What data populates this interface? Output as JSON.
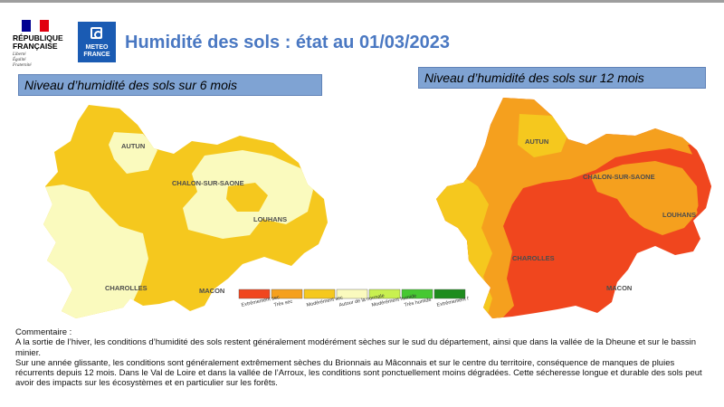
{
  "header": {
    "rf_name_line1": "RÉPUBLIQUE",
    "rf_name_line2": "FRANÇAISE",
    "rf_motto_1": "Liberté",
    "rf_motto_2": "Égalité",
    "rf_motto_3": "Fraternité",
    "mf_line1": "METEO",
    "mf_line2": "FRANCE",
    "title": "Humidité des sols : état au 01/03/2023",
    "colors": {
      "title": "#4a78c2",
      "mf_blue": "#1a5bb3",
      "flag_blue": "#000091",
      "flag_red": "#e1000f"
    }
  },
  "map6": {
    "heading": "Niveau d’humidité des sols sur 6 mois",
    "towns": {
      "autun": "AUTUN",
      "chalon": "CHALON-SUR-SAONE",
      "louhans": "LOUHANS",
      "charolles": "CHAROLLES",
      "macon": "MACON"
    }
  },
  "map12": {
    "heading": "Niveau d’humidité des sols sur 12 mois",
    "towns": {
      "autun": "AUTUN",
      "chalon": "CHALON-SUR-SAONE",
      "louhans": "LOUHANS",
      "charolles": "CHAROLLES",
      "macon": "MACON"
    }
  },
  "legend": [
    {
      "label": "Extrêmement sec",
      "color": "#f0461e"
    },
    {
      "label": "Très sec",
      "color": "#f5a01e"
    },
    {
      "label": "Modérément sec",
      "color": "#f5c81e"
    },
    {
      "label": "Autour de la normale",
      "color": "#fafabe"
    },
    {
      "label": "Modérément humide",
      "color": "#c8f050"
    },
    {
      "label": "Très humide",
      "color": "#46c832"
    },
    {
      "label": "Extrêmement humide",
      "color": "#1e8c1e"
    }
  ],
  "comment": {
    "heading": "Commentaire :",
    "paragraph1": "A la sortie de l’hiver, les conditions d’humidité des sols restent généralement modérément sèches sur le sud du département, ainsi que dans la vallée de la Dheune et sur le bassin minier.",
    "paragraph2": "Sur une année glissante, les conditions sont généralement extrêmement sèches du Brionnais au Mâconnais et sur le centre du territoire, conséquence de manques de pluies récurrents depuis 12 mois. Dans le Val de Loire et dans la vallée de l’Arroux, les conditions sont ponctuellement moins dégradées. Cette sécheresse longue et durable des sols peut avoir des impacts sur les écosystèmes et en particulier sur les forêts."
  }
}
